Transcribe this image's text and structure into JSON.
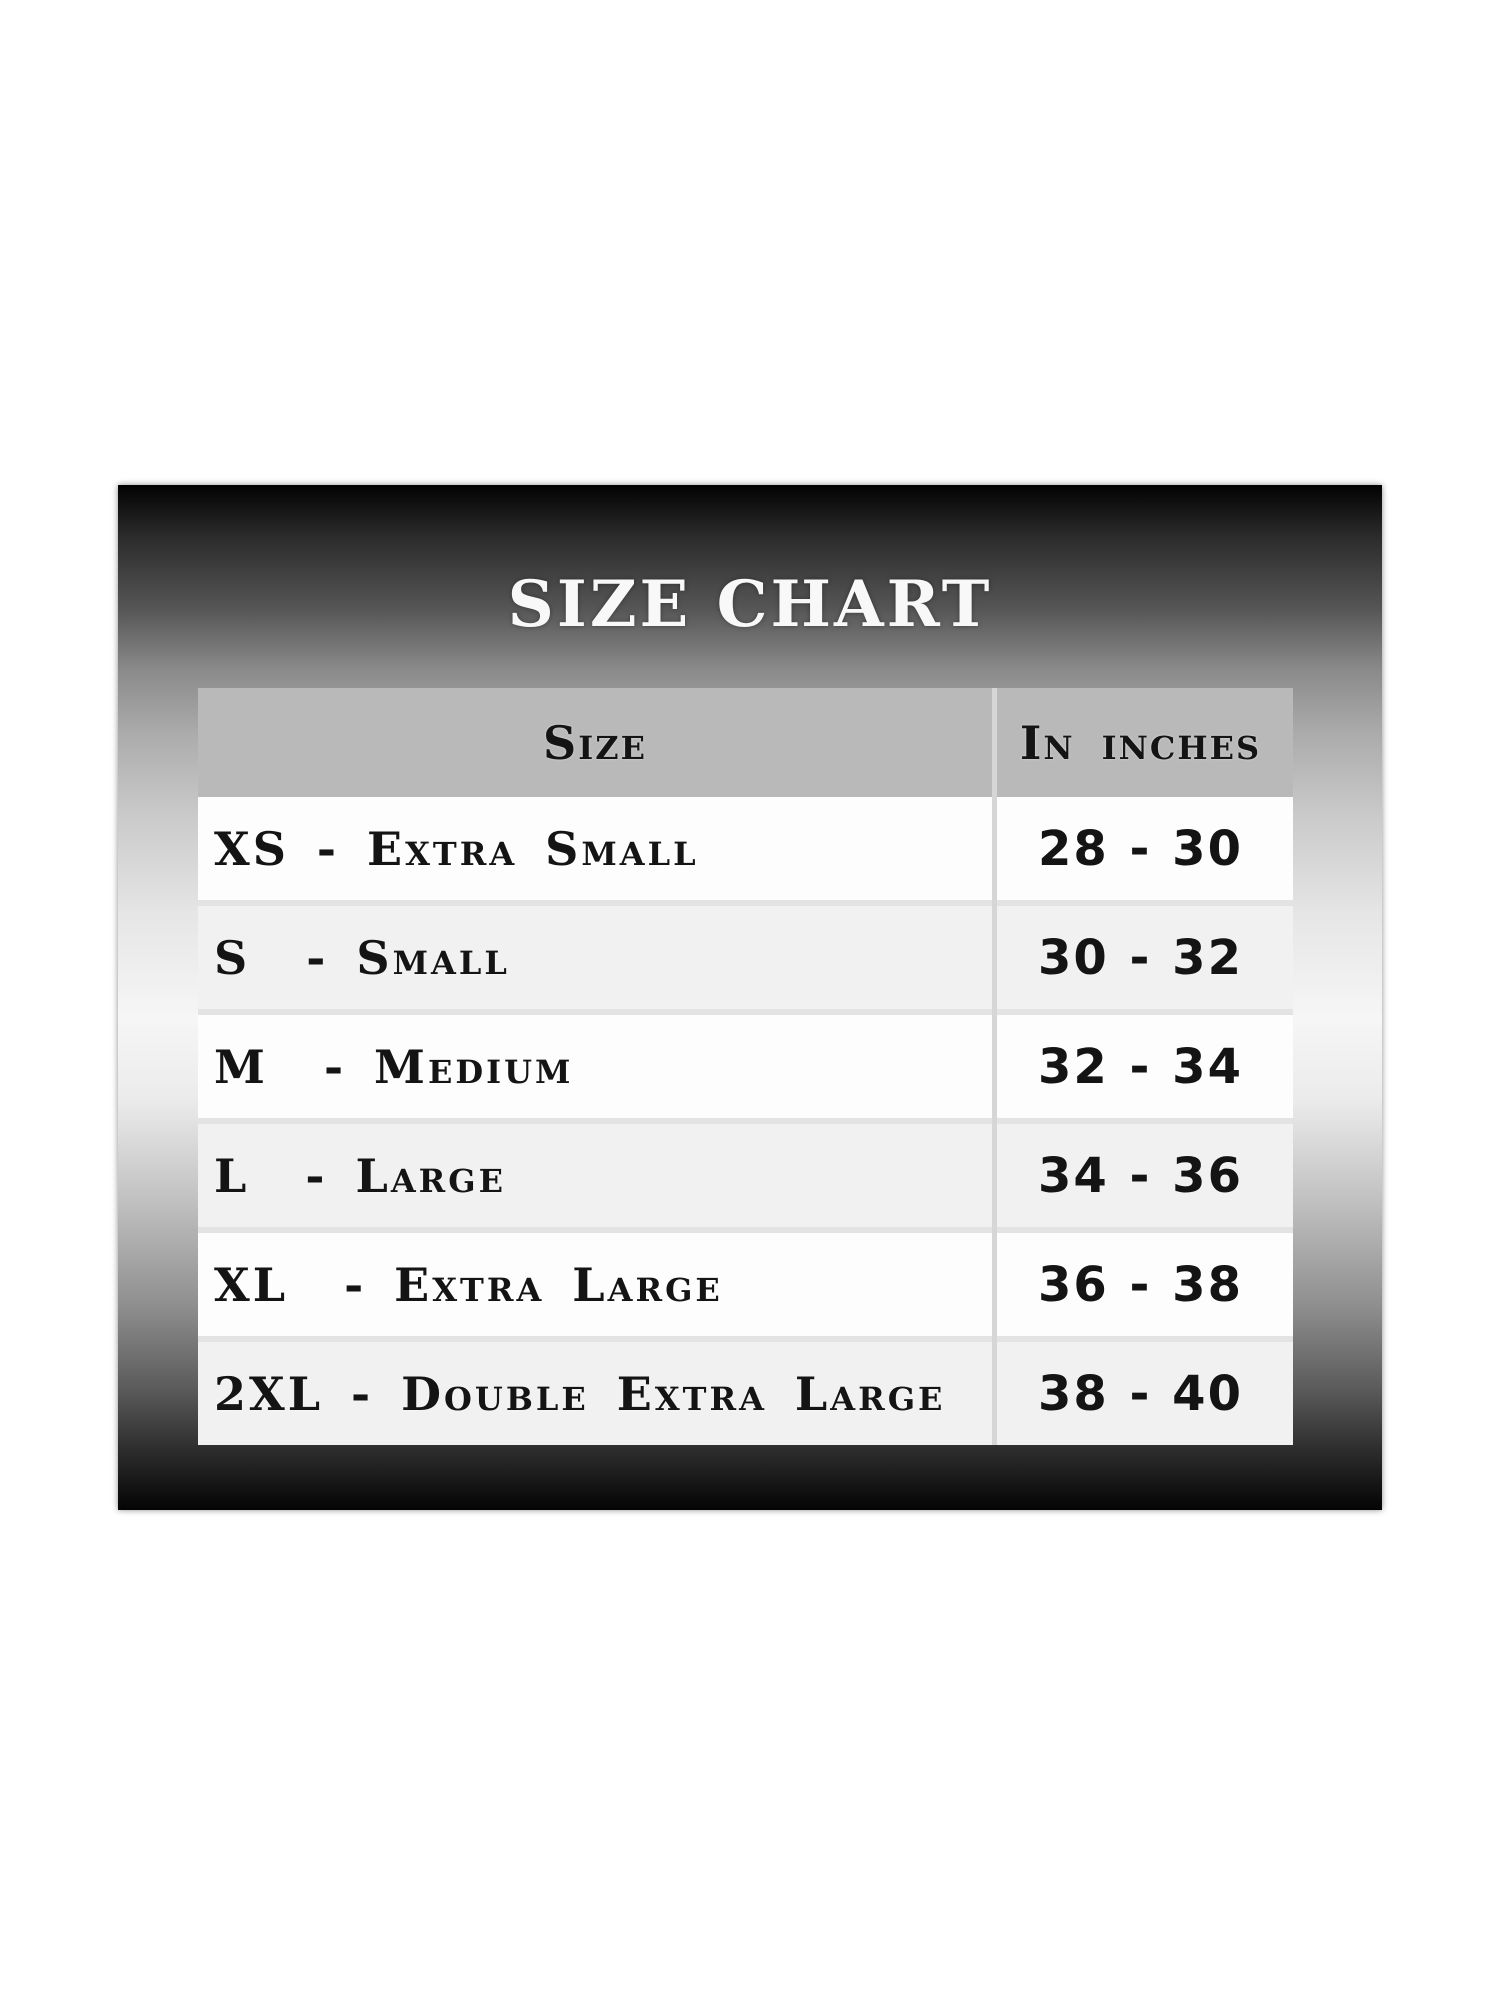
{
  "title": "SIZE CHART",
  "colors": {
    "page_background": "#ffffff",
    "panel_top": "#020202",
    "panel_middle": "#f6f6f6",
    "panel_bottom": "#040404",
    "title_text": "#f8f8f8",
    "header_bg": "#b9b9b9",
    "row_bg": "#fdfdfd",
    "row_alt_bg": "#f1f1f1",
    "separator": "#e3e3e3",
    "column_divider": "#d6d6d6",
    "table_text": "#141414"
  },
  "chart_data": {
    "type": "table",
    "title": "SIZE CHART",
    "columns": [
      "Size",
      "In inches"
    ],
    "rows": [
      [
        "XS - Extra Small",
        "28 - 30"
      ],
      [
        "S  - Small",
        "30 - 32"
      ],
      [
        "M  - Medium",
        "32 - 34"
      ],
      [
        "L  - Large",
        "34 - 36"
      ],
      [
        "XL  - Extra Large",
        "36 - 38"
      ],
      [
        "2XL - Double Extra Large",
        "38 - 40"
      ]
    ]
  }
}
